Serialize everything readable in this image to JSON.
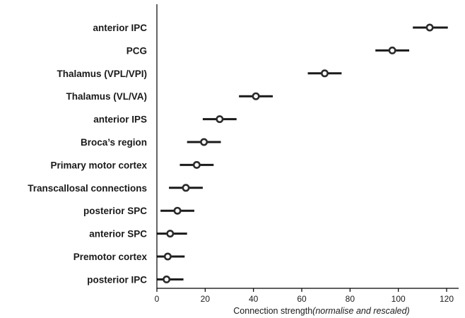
{
  "chart_data": {
    "type": "scatter",
    "orientation": "horizontal",
    "title": "",
    "ylabel": "",
    "xlabel": {
      "main": "Connection strength",
      "qualifier": "(normalise and rescaled)"
    },
    "xlim": [
      0,
      125
    ],
    "xticks": [
      0,
      20,
      40,
      60,
      80,
      100,
      120
    ],
    "grid": false,
    "legend": "none",
    "colors": {
      "marker": "#2b2b2b",
      "errorbar": "#1a1a1a",
      "axis": "#000000"
    },
    "points": [
      {
        "label": "anterior IPC",
        "value": 113,
        "low": 106,
        "high": 120.5
      },
      {
        "label": "PCG",
        "value": 97.5,
        "low": 90.5,
        "high": 104.5
      },
      {
        "label": "Thalamus (VPL/VPI)",
        "value": 69.5,
        "low": 62.5,
        "high": 76.5
      },
      {
        "label": "Thalamus (VL/VA)",
        "value": 41,
        "low": 34,
        "high": 48
      },
      {
        "label": "anterior IPS",
        "value": 26,
        "low": 19,
        "high": 33
      },
      {
        "label": "Broca’s region",
        "value": 19.5,
        "low": 12.5,
        "high": 26.5
      },
      {
        "label": "Primary motor cortex",
        "value": 16.5,
        "low": 9.5,
        "high": 23.5
      },
      {
        "label": "Transcallosal connections",
        "value": 12,
        "low": 5,
        "high": 19
      },
      {
        "label": "posterior SPC",
        "value": 8.5,
        "low": 1.5,
        "high": 15.5
      },
      {
        "label": "anterior SPC",
        "value": 5.5,
        "low": 0,
        "high": 12.5
      },
      {
        "label": "Premotor cortex",
        "value": 4.5,
        "low": 0,
        "high": 11.5
      },
      {
        "label": "posterior IPC",
        "value": 4,
        "low": 0,
        "high": 11
      }
    ]
  }
}
